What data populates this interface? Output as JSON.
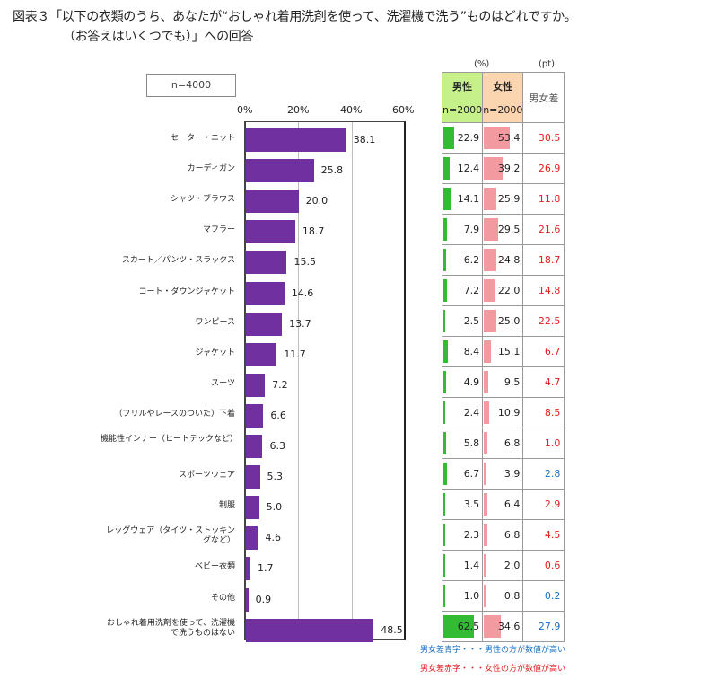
{
  "title": {
    "line1": "図表３「以下の衣類のうち、あなたが“おしゃれ着用洗剤を使って、洗濯機で洗う”ものはどれですか。",
    "line2": "（お答えはいくつでも）」への回答"
  },
  "sample_note": "n=4000",
  "table_header": {
    "unit_pct": "(%)",
    "unit_pt": "(pt)",
    "male": "男性",
    "male_n": "n=2000",
    "female": "女性",
    "female_n": "n=2000",
    "diff": "男女差"
  },
  "legend": {
    "blue": "男女差青字・・・男性の方が数値が高い",
    "red": "男女差赤字・・・女性の方が数値が高い"
  },
  "colors": {
    "bar": "#7030a0",
    "male_bar": "#33bb33",
    "female_bar": "#f29aa0",
    "diff_red": "#e02020",
    "diff_blue": "#1a6fc0"
  },
  "chart_data": {
    "type": "bar",
    "orientation": "horizontal",
    "xlim": [
      0,
      60
    ],
    "x_ticks": [
      "0%",
      "20%",
      "40%",
      "60%"
    ],
    "grid": true,
    "categories": [
      "セーター・ニット",
      "カーディガン",
      "シャツ・ブラウス",
      "マフラー",
      "スカート／パンツ・スラックス",
      "コート・ダウンジャケット",
      "ワンピース",
      "ジャケット",
      "スーツ",
      "（フリルやレースのついた）下着",
      "機能性インナー（ヒートテックなど）",
      "スポーツウェア",
      "制服",
      "レッグウェア（タイツ・ストッキングなど）",
      "ベビー衣類",
      "その他",
      "おしゃれ着用洗剤を使って、洗濯機で洗うものはない"
    ],
    "values": [
      "38.1",
      "25.8",
      "20.0",
      "18.7",
      "15.5",
      "14.6",
      "13.7",
      "11.7",
      "7.2",
      "6.6",
      "6.3",
      "5.3",
      "5.0",
      "4.6",
      "1.7",
      "0.9",
      "48.5"
    ],
    "male": [
      "22.9",
      "12.4",
      "14.1",
      "7.9",
      "6.2",
      "7.2",
      "2.5",
      "8.4",
      "4.9",
      "2.4",
      "5.8",
      "6.7",
      "3.5",
      "2.3",
      "1.4",
      "1.0",
      "62.5"
    ],
    "female": [
      "53.4",
      "39.2",
      "25.9",
      "29.5",
      "24.8",
      "22.0",
      "25.0",
      "15.1",
      "9.5",
      "10.9",
      "6.8",
      "3.9",
      "6.4",
      "6.8",
      "2.0",
      "0.8",
      "34.6"
    ],
    "diff": [
      "30.5",
      "26.9",
      "11.8",
      "21.6",
      "18.7",
      "14.8",
      "22.5",
      "6.7",
      "4.7",
      "8.5",
      "1.0",
      "2.8",
      "2.9",
      "4.5",
      "0.6",
      "0.2",
      "27.9"
    ],
    "diff_higher": [
      "f",
      "f",
      "f",
      "f",
      "f",
      "f",
      "f",
      "f",
      "f",
      "f",
      "f",
      "m",
      "f",
      "f",
      "f",
      "m",
      "m"
    ]
  }
}
